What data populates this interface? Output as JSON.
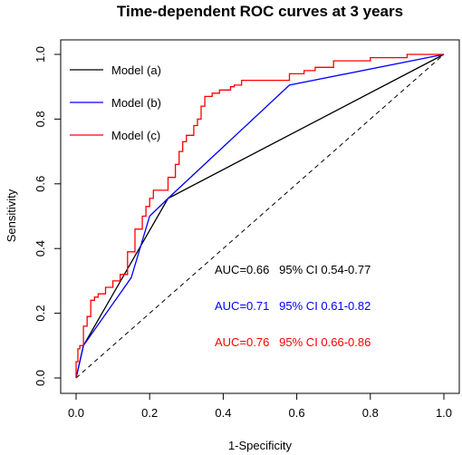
{
  "chart_data": {
    "type": "line",
    "title": "Time-dependent ROC curves at 3 years",
    "xlabel": "1-Specificity",
    "ylabel": "Sensitivity",
    "xlim": [
      0,
      1
    ],
    "ylim": [
      0,
      1
    ],
    "x_ticks": [
      "0.0",
      "0.2",
      "0.4",
      "0.6",
      "0.8",
      "1.0"
    ],
    "y_ticks": [
      "0.0",
      "0.2",
      "0.4",
      "0.6",
      "0.8",
      "1.0"
    ],
    "grid": false,
    "legend_position": "top-left",
    "reference_line": {
      "style": "dashed",
      "x": [
        0,
        1
      ],
      "y": [
        0,
        1
      ]
    },
    "series": [
      {
        "name": "Model (a)",
        "color": "#000000",
        "x": [
          0,
          0.02,
          0.25,
          1
        ],
        "y": [
          0,
          0.1,
          0.555,
          1
        ]
      },
      {
        "name": "Model (b)",
        "color": "#0000ff",
        "x": [
          0,
          0.02,
          0.15,
          0.2,
          0.25,
          0.58,
          1
        ],
        "y": [
          0,
          0.1,
          0.31,
          0.5,
          0.555,
          0.905,
          1
        ]
      },
      {
        "name": "Model (c)",
        "color": "#ff0000",
        "step": true,
        "x": [
          0,
          0.005,
          0.01,
          0.02,
          0.03,
          0.04,
          0.05,
          0.06,
          0.08,
          0.1,
          0.12,
          0.14,
          0.16,
          0.18,
          0.19,
          0.2,
          0.21,
          0.25,
          0.27,
          0.28,
          0.29,
          0.3,
          0.32,
          0.33,
          0.34,
          0.35,
          0.37,
          0.39,
          0.42,
          0.43,
          0.45,
          0.58,
          0.62,
          0.65,
          0.7,
          0.8,
          0.9,
          1
        ],
        "y": [
          0,
          0.05,
          0.09,
          0.1,
          0.16,
          0.19,
          0.24,
          0.25,
          0.26,
          0.28,
          0.3,
          0.32,
          0.39,
          0.46,
          0.5,
          0.53,
          0.555,
          0.58,
          0.62,
          0.66,
          0.7,
          0.73,
          0.75,
          0.78,
          0.8,
          0.84,
          0.87,
          0.88,
          0.89,
          0.9,
          0.905,
          0.92,
          0.94,
          0.95,
          0.96,
          0.98,
          0.99,
          1
        ]
      }
    ],
    "annotations": [
      {
        "text": "AUC=0.66   95% CI 0.54-0.77",
        "color": "#000000"
      },
      {
        "text": "AUC=0.71   95% CI 0.61-0.82",
        "color": "#0000ff"
      },
      {
        "text": "AUC=0.76   95% CI 0.66-0.86",
        "color": "#ff0000"
      }
    ]
  }
}
